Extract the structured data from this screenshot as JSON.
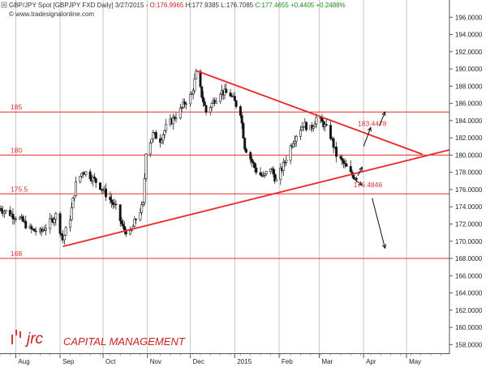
{
  "header": {
    "icon": "chart-plus-icon",
    "instrument": "GBP/JPY Spot [GBPJPY FXD  Daily] 3/27/2015 - ",
    "open": "O:176.9965",
    "high": "H:177.9385",
    "low": "L:176.7085",
    "close": "C:177.4655",
    "change": "+0.4405",
    "change_pct": "+0.2488%",
    "colors": {
      "open": "#d02020",
      "close": "#1a8a1a",
      "change": "#1a8a1a",
      "text": "#333333"
    }
  },
  "watermark": "© www.tradesignalonline.com",
  "brand": {
    "mark": "jrc",
    "name": "CAPITAL MANAGEMENT",
    "color": "#e03030"
  },
  "chart_data": {
    "type": "candlestick",
    "title": "GBP/JPY Spot [GBPJPY FXD  Daily]",
    "ylim": [
      157,
      198
    ],
    "y_ticks": [
      158,
      160,
      162,
      164,
      166,
      168,
      170,
      172,
      174,
      176,
      178,
      180,
      182,
      184,
      186,
      188,
      190,
      192,
      194,
      196
    ],
    "y_tick_labels": [
      "158.0000",
      "160.0000",
      "162.0000",
      "164.0000",
      "166.0000",
      "168.0000",
      "170.0000",
      "172.0000",
      "174.0000",
      "176.0000",
      "178.0000",
      "180.0000",
      "182.0000",
      "184.0000",
      "186.0000",
      "188.0000",
      "190.0000",
      "192.0000",
      "194.0000",
      "196.0000"
    ],
    "x_range": [
      "2014-07-21",
      "2015-05-31"
    ],
    "x_ticks": [
      {
        "date": "2014-08-01",
        "label": "Aug"
      },
      {
        "date": "2014-09-01",
        "label": "Sep"
      },
      {
        "date": "2014-10-01",
        "label": "Oct"
      },
      {
        "date": "2014-11-01",
        "label": "Nov"
      },
      {
        "date": "2014-12-01",
        "label": "Dec"
      },
      {
        "date": "2015-01-01",
        "label": "2015"
      },
      {
        "date": "2015-02-01",
        "label": "Feb"
      },
      {
        "date": "2015-03-01",
        "label": "Mar"
      },
      {
        "date": "2015-04-01",
        "label": "Apr"
      },
      {
        "date": "2015-05-01",
        "label": "May"
      }
    ],
    "price_path": [
      [
        "2014-07-21",
        173.8
      ],
      [
        "2014-07-28",
        173.2
      ],
      [
        "2014-08-04",
        172.6
      ],
      [
        "2014-08-11",
        171.4
      ],
      [
        "2014-08-18",
        171.0
      ],
      [
        "2014-08-25",
        172.2
      ],
      [
        "2014-08-29",
        173.0
      ],
      [
        "2014-09-03",
        170.2
      ],
      [
        "2014-09-08",
        172.8
      ],
      [
        "2014-09-12",
        176.6
      ],
      [
        "2014-09-17",
        178.2
      ],
      [
        "2014-09-22",
        177.6
      ],
      [
        "2014-09-29",
        176.4
      ],
      [
        "2014-10-06",
        174.8
      ],
      [
        "2014-10-10",
        173.8
      ],
      [
        "2014-10-15",
        171.5
      ],
      [
        "2014-10-20",
        170.8
      ],
      [
        "2014-10-24",
        172.6
      ],
      [
        "2014-10-29",
        174.2
      ],
      [
        "2014-10-31",
        180.5
      ],
      [
        "2014-11-05",
        182.4
      ],
      [
        "2014-11-10",
        181.8
      ],
      [
        "2014-11-14",
        183.2
      ],
      [
        "2014-11-19",
        184.2
      ],
      [
        "2014-11-24",
        185.2
      ],
      [
        "2014-11-28",
        186.3
      ],
      [
        "2014-12-02",
        187.0
      ],
      [
        "2014-12-05",
        189.4
      ],
      [
        "2014-12-08",
        187.6
      ],
      [
        "2014-12-12",
        185.0
      ],
      [
        "2014-12-17",
        186.2
      ],
      [
        "2014-12-22",
        187.4
      ],
      [
        "2014-12-29",
        187.0
      ],
      [
        "2015-01-05",
        185.0
      ],
      [
        "2015-01-08",
        181.0
      ],
      [
        "2015-01-12",
        179.6
      ],
      [
        "2015-01-16",
        178.2
      ],
      [
        "2015-01-21",
        177.4
      ],
      [
        "2015-01-26",
        178.6
      ],
      [
        "2015-01-30",
        177.0
      ],
      [
        "2015-02-04",
        178.8
      ],
      [
        "2015-02-09",
        181.0
      ],
      [
        "2015-02-13",
        182.4
      ],
      [
        "2015-02-18",
        183.6
      ],
      [
        "2015-02-23",
        183.0
      ],
      [
        "2015-02-27",
        184.3
      ],
      [
        "2015-03-04",
        183.6
      ],
      [
        "2015-03-09",
        182.2
      ],
      [
        "2015-03-13",
        180.0
      ],
      [
        "2015-03-18",
        179.0
      ],
      [
        "2015-03-23",
        177.8
      ],
      [
        "2015-03-27",
        177.4655
      ]
    ],
    "annotations": [
      {
        "kind": "hline",
        "y": 185,
        "label": "185"
      },
      {
        "kind": "hline",
        "y": 180,
        "label": "180"
      },
      {
        "kind": "hline",
        "y": 175.5,
        "label": "175.5"
      },
      {
        "kind": "hline",
        "y": 168,
        "label": "168"
      },
      {
        "kind": "trendline",
        "label": "resistance",
        "from": [
          "2014-12-05",
          189.8
        ],
        "to": [
          "2015-05-12",
          180.1
        ]
      },
      {
        "kind": "trendline",
        "label": "support",
        "from": [
          "2014-09-03",
          169.4
        ],
        "to": [
          "2015-05-31",
          180.6
        ]
      },
      {
        "kind": "text",
        "text": "183.4478",
        "at": [
          "2015-03-28",
          183.4
        ]
      },
      {
        "kind": "text",
        "text": "176.4846",
        "at": [
          "2015-03-25",
          176.3
        ]
      }
    ],
    "arrows": [
      {
        "from": [
          "2015-04-01",
          181.0
        ],
        "to": [
          "2015-04-06",
          183.2
        ]
      },
      {
        "from": [
          "2015-04-12",
          183.4
        ],
        "to": [
          "2015-04-16",
          185.0
        ]
      },
      {
        "from": [
          "2015-03-28",
          177.6
        ],
        "to": [
          "2015-03-31",
          178.6
        ]
      },
      {
        "from": [
          "2015-03-24",
          177.4
        ],
        "to": [
          "2015-03-31",
          176.5
        ]
      },
      {
        "from": [
          "2015-04-07",
          175.0
        ],
        "to": [
          "2015-04-16",
          169.2
        ]
      }
    ]
  }
}
